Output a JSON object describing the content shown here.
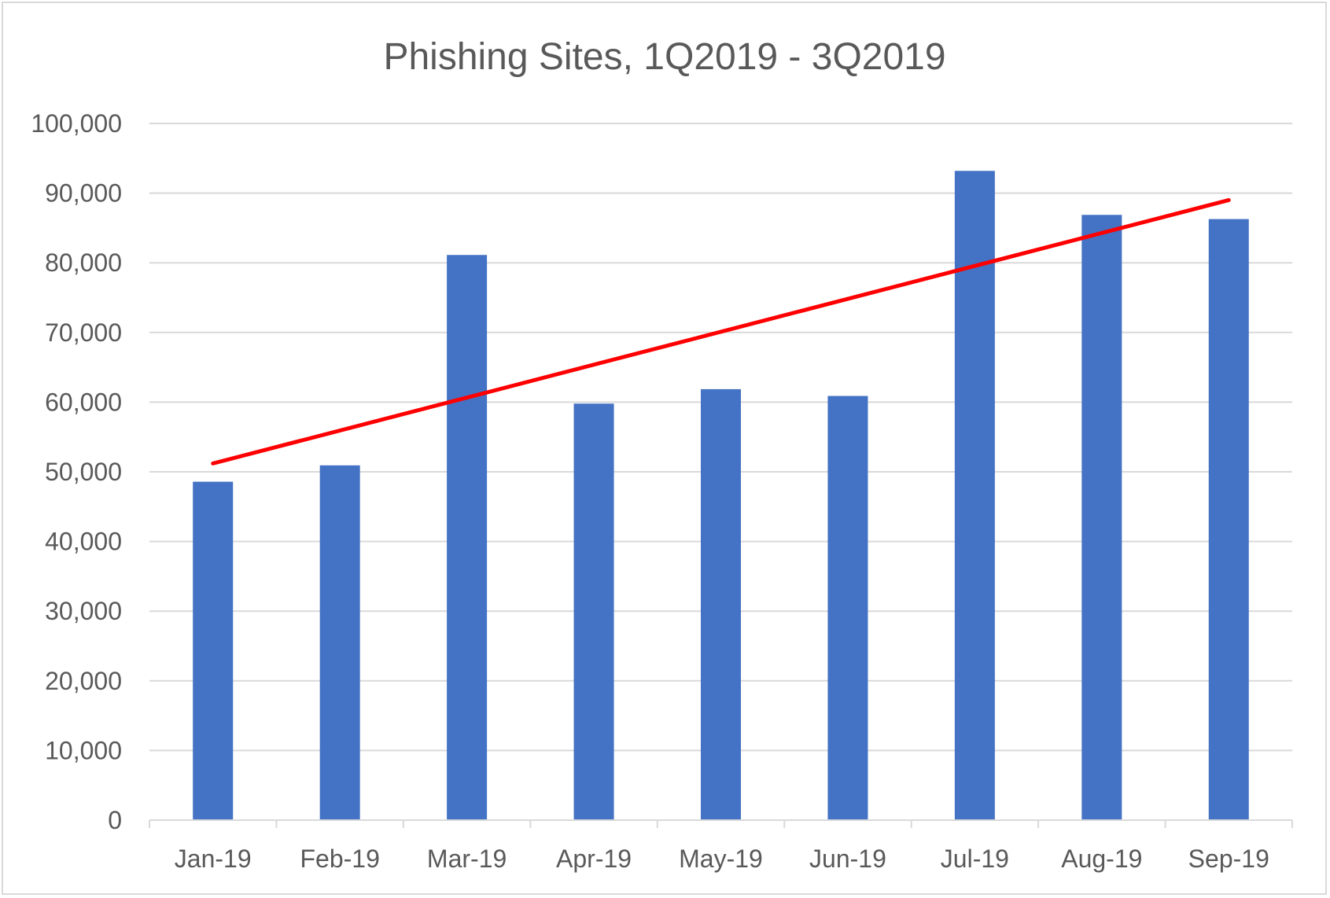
{
  "chart_data": {
    "type": "bar",
    "title": "Phishing Sites, 1Q2019 - 3Q2019",
    "xlabel": "",
    "ylabel": "",
    "categories": [
      "Jan-19",
      "Feb-19",
      "Mar-19",
      "Apr-19",
      "May-19",
      "Jun-19",
      "Jul-19",
      "Aug-19",
      "Sep-19"
    ],
    "series": [
      {
        "values": [
          48577,
          50926,
          81122,
          59788,
          61861,
          60889,
          93194,
          86876,
          86276
        ],
        "color": "#4472c4"
      }
    ],
    "trendline": {
      "type": "linear",
      "start": 51200,
      "end": 89000,
      "color": "#ff0000"
    },
    "ylim": [
      0,
      100000
    ],
    "yticks": [
      0,
      10000,
      20000,
      30000,
      40000,
      50000,
      60000,
      70000,
      80000,
      90000,
      100000
    ],
    "ytick_labels": [
      "0",
      "10,000",
      "20,000",
      "30,000",
      "40,000",
      "50,000",
      "60,000",
      "70,000",
      "80,000",
      "90,000",
      "100,000"
    ],
    "grid": true,
    "legend": "none"
  }
}
